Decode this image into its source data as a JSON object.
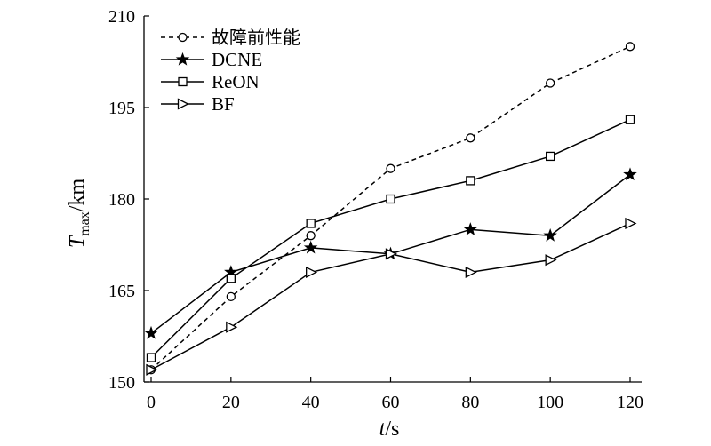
{
  "chart_data": {
    "type": "line",
    "title": "",
    "xlabel": "t/s",
    "ylabel": "Tmax/km",
    "x": [
      0,
      20,
      40,
      60,
      80,
      100,
      120
    ],
    "xlim": [
      0,
      120
    ],
    "ylim": [
      150,
      210
    ],
    "xticks": [
      0,
      20,
      40,
      60,
      80,
      100,
      120
    ],
    "yticks": [
      150,
      165,
      180,
      195,
      210
    ],
    "grid": false,
    "legend_position": "top-left",
    "series": [
      {
        "name": "故障前性能",
        "marker": "circle",
        "line_style": "dashed",
        "values": [
          152,
          164,
          174,
          185,
          190,
          199,
          205
        ]
      },
      {
        "name": "DCNE",
        "marker": "star",
        "line_style": "solid",
        "values": [
          158,
          168,
          172,
          171,
          175,
          174,
          184
        ]
      },
      {
        "name": "ReON",
        "marker": "square",
        "line_style": "solid",
        "values": [
          154,
          167,
          176,
          180,
          183,
          187,
          193
        ]
      },
      {
        "name": "BF",
        "marker": "triangle-right",
        "line_style": "solid",
        "values": [
          152,
          159,
          168,
          171,
          168,
          170,
          176
        ]
      }
    ]
  },
  "axis_labels": {
    "y_symbol": "T",
    "y_subscript": "max",
    "y_unit": "/km",
    "x_symbol": "t",
    "x_unit": "/s"
  },
  "colors": {
    "line": "#000000",
    "background": "#ffffff"
  }
}
